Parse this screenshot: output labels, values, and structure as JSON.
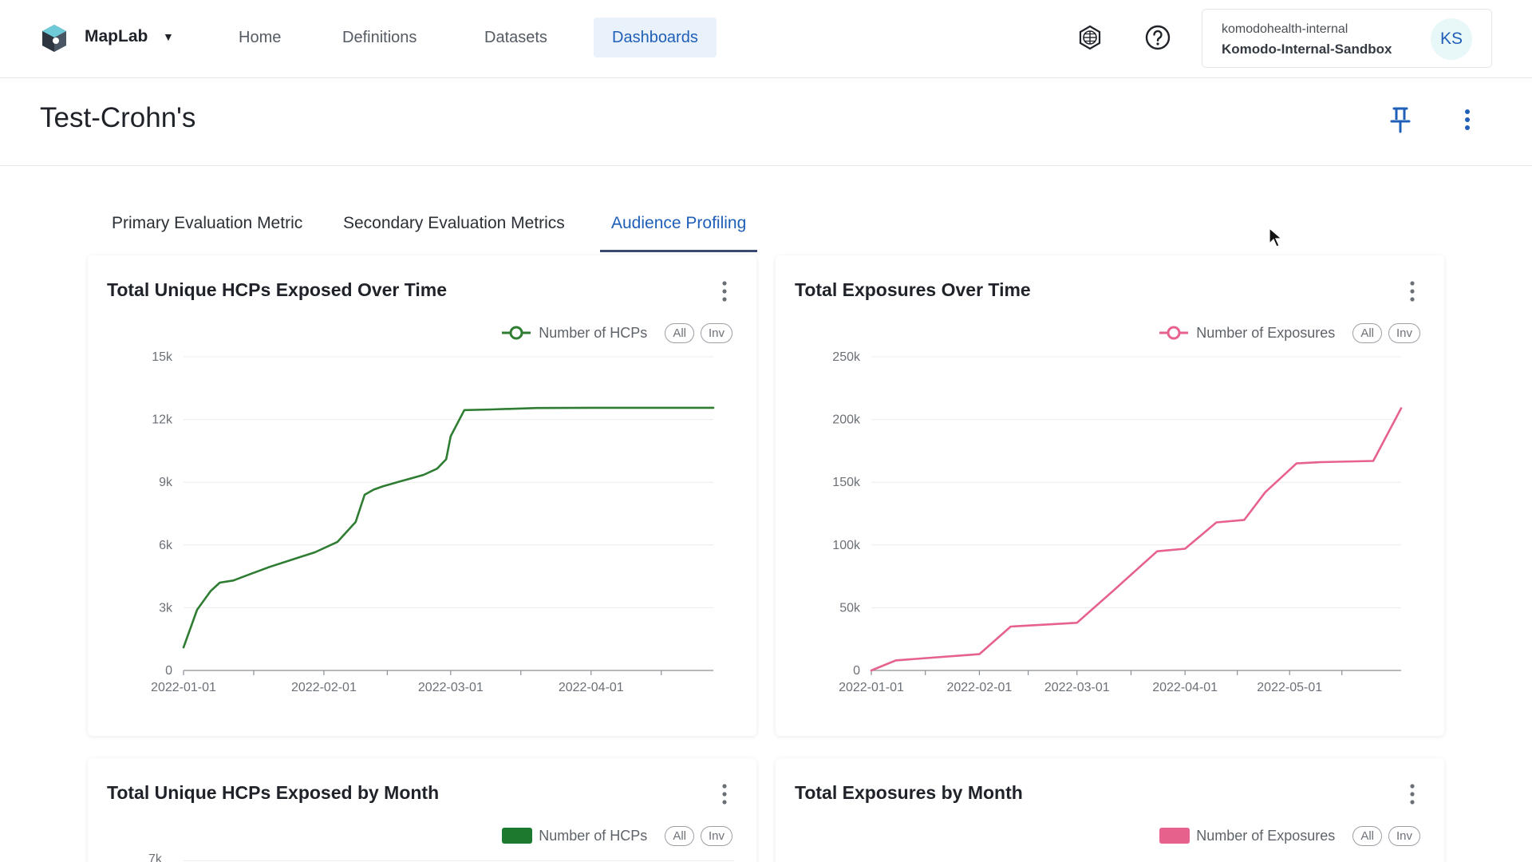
{
  "header": {
    "brand": "MapLab",
    "nav": [
      {
        "label": "Home"
      },
      {
        "label": "Definitions"
      },
      {
        "label": "Datasets"
      },
      {
        "label": "Dashboards",
        "active": true
      }
    ],
    "account": {
      "org": "komodohealth-internal",
      "env": "Komodo-Internal-Sandbox",
      "initials": "KS"
    },
    "icons": [
      "app-logo-icon",
      "grid-globe-icon",
      "help-icon",
      "pin-icon",
      "more-vertical-icon"
    ]
  },
  "page": {
    "title": "Test-Crohn's"
  },
  "tabs": [
    {
      "label": "Primary Evaluation Metric"
    },
    {
      "label": "Secondary Evaluation Metrics"
    },
    {
      "label": "Audience Profiling",
      "active": true
    }
  ],
  "colors": {
    "accent": "#1f5fb8",
    "hcp_series": "#2e7d32",
    "exposure_series": "#e6628c"
  },
  "cards": [
    {
      "title": "Total Unique HCPs Exposed Over Time",
      "legend": "Number of HCPs",
      "pill_all": "All",
      "pill_inv": "Inv"
    },
    {
      "title": "Total Exposures Over Time",
      "legend": "Number of Exposures",
      "pill_all": "All",
      "pill_inv": "Inv"
    },
    {
      "title": "Total Unique HCPs Exposed by Month",
      "legend": "Number of HCPs",
      "pill_all": "All",
      "pill_inv": "Inv",
      "partial_tick": "7k"
    },
    {
      "title": "Total Exposures by Month",
      "legend": "Number of Exposures",
      "pill_all": "All",
      "pill_inv": "Inv"
    }
  ],
  "chart_data": [
    {
      "type": "line",
      "title": "Total Unique HCPs Exposed Over Time",
      "series": [
        {
          "name": "Number of HCPs",
          "color": "#2e7d32",
          "x": [
            "2022-01-01",
            "2022-01-04",
            "2022-01-07",
            "2022-01-09",
            "2022-01-12",
            "2022-01-15",
            "2022-01-20",
            "2022-01-25",
            "2022-01-30",
            "2022-02-04",
            "2022-02-08",
            "2022-02-10",
            "2022-02-12",
            "2022-02-14",
            "2022-02-18",
            "2022-02-23",
            "2022-02-26",
            "2022-02-28",
            "2022-03-01",
            "2022-03-04",
            "2022-03-10",
            "2022-03-20",
            "2022-04-01",
            "2022-04-15",
            "2022-04-28"
          ],
          "y": [
            1100,
            2900,
            3800,
            4200,
            4300,
            4550,
            4950,
            5300,
            5650,
            6150,
            7100,
            8400,
            8650,
            8800,
            9050,
            9350,
            9650,
            10100,
            11200,
            12450,
            12480,
            12550,
            12560,
            12560,
            12560
          ]
        }
      ],
      "x_ticks": [
        "2022-01-01",
        "2022-02-01",
        "2022-03-01",
        "2022-04-01"
      ],
      "y_ticks": [
        "0",
        "3k",
        "6k",
        "9k",
        "12k",
        "15k"
      ],
      "xlim": [
        "2022-01-01",
        "2022-04-28"
      ],
      "ylim": [
        0,
        15000
      ],
      "grid": true,
      "legend": "top-right"
    },
    {
      "type": "line",
      "title": "Total Exposures Over Time",
      "series": [
        {
          "name": "Number of Exposures",
          "color": "#e6628c",
          "x": [
            "2022-01-01",
            "2022-01-08",
            "2022-02-01",
            "2022-02-10",
            "2022-03-01",
            "2022-03-12",
            "2022-03-24",
            "2022-04-01",
            "2022-04-10",
            "2022-04-18",
            "2022-04-24",
            "2022-05-03",
            "2022-05-10",
            "2022-05-25",
            "2022-06-02"
          ],
          "y": [
            0,
            8000,
            13000,
            35000,
            38000,
            65000,
            95000,
            97000,
            118000,
            120000,
            142000,
            165000,
            166000,
            167000,
            209000
          ]
        }
      ],
      "x_ticks": [
        "2022-01-01",
        "2022-02-01",
        "2022-03-01",
        "2022-04-01",
        "2022-05-01"
      ],
      "y_ticks": [
        "0",
        "50k",
        "100k",
        "150k",
        "200k",
        "250k"
      ],
      "xlim": [
        "2022-01-01",
        "2022-06-02"
      ],
      "ylim": [
        0,
        250000
      ],
      "grid": true,
      "legend": "top-right"
    }
  ]
}
